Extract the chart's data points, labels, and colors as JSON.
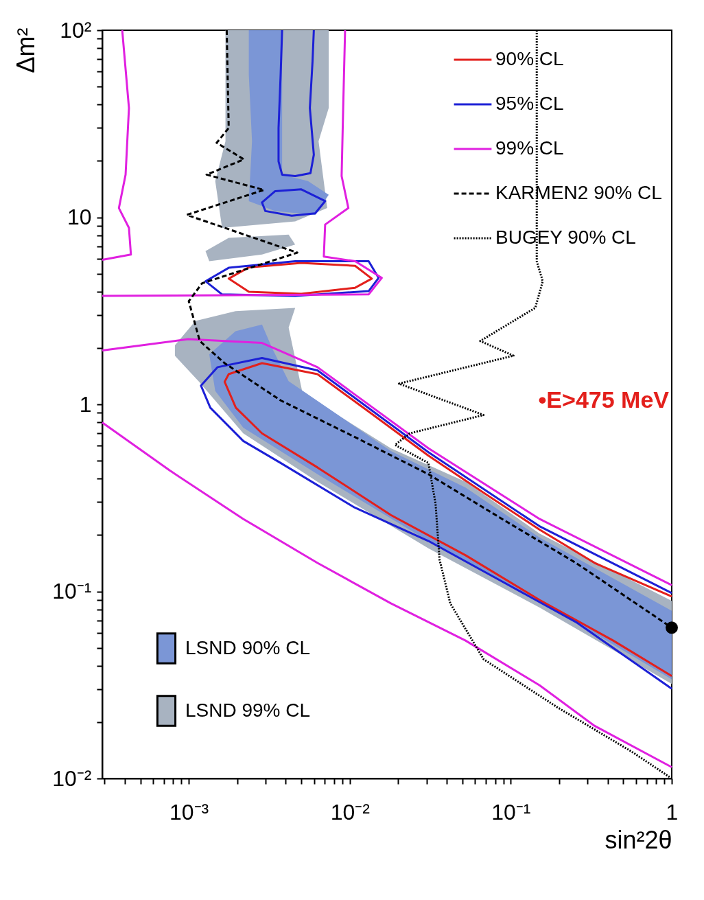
{
  "chart_data": {
    "type": "line",
    "xlabel": "sin²2θ",
    "ylabel": "Δm²",
    "log": "xy",
    "xlim": [
      0.00029,
      1
    ],
    "ylim": [
      0.01,
      100
    ],
    "xticks": [
      {
        "value": 0.0003,
        "label": null
      },
      {
        "value": 0.0004,
        "label": null
      },
      {
        "value": 0.0005,
        "label": null
      },
      {
        "value": 0.0006,
        "label": null
      },
      {
        "value": 0.0007,
        "label": null
      },
      {
        "value": 0.0008,
        "label": null
      },
      {
        "value": 0.0009,
        "label": null
      },
      {
        "value": 0.001,
        "label": "10⁻³"
      },
      {
        "value": 0.002,
        "label": null
      },
      {
        "value": 0.003,
        "label": null
      },
      {
        "value": 0.004,
        "label": null
      },
      {
        "value": 0.005,
        "label": null
      },
      {
        "value": 0.006,
        "label": null
      },
      {
        "value": 0.007,
        "label": null
      },
      {
        "value": 0.008,
        "label": null
      },
      {
        "value": 0.009,
        "label": null
      },
      {
        "value": 0.01,
        "label": "10⁻²"
      },
      {
        "value": 0.02,
        "label": null
      },
      {
        "value": 0.03,
        "label": null
      },
      {
        "value": 0.04,
        "label": null
      },
      {
        "value": 0.05,
        "label": null
      },
      {
        "value": 0.06,
        "label": null
      },
      {
        "value": 0.07,
        "label": null
      },
      {
        "value": 0.08,
        "label": null
      },
      {
        "value": 0.09,
        "label": null
      },
      {
        "value": 0.1,
        "label": "10⁻¹"
      },
      {
        "value": 0.2,
        "label": null
      },
      {
        "value": 0.3,
        "label": null
      },
      {
        "value": 0.4,
        "label": null
      },
      {
        "value": 0.5,
        "label": null
      },
      {
        "value": 0.6,
        "label": null
      },
      {
        "value": 0.7,
        "label": null
      },
      {
        "value": 0.8,
        "label": null
      },
      {
        "value": 0.9,
        "label": null
      },
      1
    ],
    "yticks": [
      {
        "value": 0.01,
        "label": "10⁻²"
      },
      {
        "value": 0.02,
        "label": null
      },
      {
        "value": 0.03,
        "label": null
      },
      {
        "value": 0.04,
        "label": null
      },
      {
        "value": 0.05,
        "label": null
      },
      {
        "value": 0.06,
        "label": null
      },
      {
        "value": 0.07,
        "label": null
      },
      {
        "value": 0.08,
        "label": null
      },
      {
        "value": 0.09,
        "label": null
      },
      {
        "value": 0.1,
        "label": "10⁻¹"
      },
      {
        "value": 0.2,
        "label": null
      },
      {
        "value": 0.3,
        "label": null
      },
      {
        "value": 0.4,
        "label": null
      },
      {
        "value": 0.5,
        "label": null
      },
      {
        "value": 0.6,
        "label": null
      },
      {
        "value": 0.7,
        "label": null
      },
      {
        "value": 0.8,
        "label": null
      },
      {
        "value": 0.9,
        "label": null
      },
      1,
      {
        "value": 2,
        "label": null
      },
      {
        "value": 3,
        "label": null
      },
      {
        "value": 4,
        "label": null
      },
      {
        "value": 5,
        "label": null
      },
      {
        "value": 6,
        "label": null
      },
      {
        "value": 7,
        "label": null
      },
      {
        "value": 8,
        "label": null
      },
      {
        "value": 9,
        "label": null
      },
      10,
      {
        "value": 20,
        "label": null
      },
      {
        "value": 30,
        "label": null
      },
      {
        "value": 40,
        "label": null
      },
      {
        "value": 50,
        "label": null
      },
      {
        "value": 60,
        "label": null
      },
      {
        "value": 70,
        "label": null
      },
      {
        "value": 80,
        "label": null
      },
      {
        "value": 90,
        "label": null
      },
      {
        "value": 100,
        "label": "10²"
      }
    ],
    "legend": "top right",
    "annotations": [
      "•E>475 MeV"
    ],
    "series": [
      {
        "type": "area",
        "name": "LSND 90% CL",
        "color": "#7b96d6",
        "x": [
          0.00134,
          0.00195,
          0.00285,
          0.00329,
          0.00417,
          0.018,
          0.0524,
          0.151,
          1,
          1,
          0.151,
          0.0308,
          0.0063,
          0.00218,
          0.00146,
          null,
          0.00236,
          0.0038,
          0.0038,
          0.0055,
          0.0074,
          0.0061,
          0.00344,
          0.00236,
          0.00247,
          0.00236
        ],
        "values": [
          1.85,
          2.46,
          2.67,
          2.0,
          1.33,
          0.563,
          0.359,
          0.194,
          0.0788,
          0.0339,
          0.089,
          0.186,
          0.423,
          0.75,
          1.18,
          null,
          100,
          100,
          16.9,
          15.6,
          13.2,
          10.3,
          10.8,
          12.2,
          25.5,
          57.8
        ]
      },
      {
        "type": "area",
        "name": "LSND 99% CL",
        "color": "#a8b3c1",
        "x": [
          0.00082,
          0.0011,
          0.00195,
          0.00458,
          0.00417,
          0.00509,
          0.018,
          0.0524,
          0.151,
          1,
          1,
          0.151,
          0.0308,
          0.0063,
          0.00218,
          0.00116,
          0.00082,
          null,
          0.00169,
          0.0074,
          0.0074,
          0.0064,
          0.00724,
          0.00458,
          0.00161,
          0.00146,
          0.00169,
          null,
          0.00127,
          0.00177,
          0.00417,
          0.00458,
          0.00285,
          0.00134
        ],
        "values": [
          2.07,
          2.79,
          3.15,
          3.28,
          2.57,
          1.15,
          0.582,
          0.386,
          0.204,
          0.089,
          0.032,
          0.082,
          0.17,
          0.386,
          0.7,
          1.32,
          1.82,
          null,
          100,
          100,
          38.4,
          25.5,
          11.2,
          9.5,
          8.77,
          15.6,
          25.5,
          null,
          6.59,
          7.76,
          8.08,
          7.15,
          6.32,
          5.82
        ]
      },
      {
        "type": "line",
        "name": "90% CL",
        "color": "#e3201c",
        "line_style": "solid",
        "x": [
          1,
          0.332,
          0.151,
          0.0678,
          0.0308,
          0.014,
          0.0063,
          0.00285,
          0.00177,
          0.00167,
          0.00196,
          0.00285,
          0.0063,
          0.018,
          0.0524,
          0.151,
          0.433,
          1,
          null,
          0.00177,
          0.00236,
          0.005,
          0.0108,
          0.0137,
          0.0108,
          0.005,
          0.00236,
          0.00177,
          0.00236
        ],
        "values": [
          0.094,
          0.142,
          0.214,
          0.337,
          0.532,
          0.877,
          1.45,
          1.66,
          1.45,
          1.32,
          0.96,
          0.7,
          0.46,
          0.256,
          0.156,
          0.09,
          0.0546,
          0.0353,
          null,
          4.7,
          5.4,
          5.7,
          5.5,
          4.7,
          4.2,
          3.9,
          4.0,
          4.7,
          5.4
        ]
      },
      {
        "type": "line",
        "name": "95% CL",
        "color": "#1c20d6",
        "line_style": "solid",
        "x": [
          1,
          0.151,
          0.0308,
          0.0063,
          0.00285,
          0.00151,
          0.00119,
          0.00136,
          0.00218,
          0.00372,
          0.0107,
          0.0308,
          0.0883,
          0.254,
          1,
          null,
          0.00127,
          0.00177,
          0.00458,
          0.0131,
          0.0151,
          0.0131,
          0.00458,
          0.00161,
          0.00127,
          0.00177,
          null,
          0.00285,
          0.00344,
          0.005,
          0.00703,
          0.0061,
          0.00436,
          0.00299,
          0.00285,
          0.00344,
          null,
          0.0038,
          0.00372,
          0.00361,
          0.00361,
          0.0038,
          0.00458,
          0.0057,
          0.00598,
          0.00565,
          0.00587,
          0.00598
        ],
        "values": [
          0.098,
          0.223,
          0.555,
          1.52,
          1.77,
          1.58,
          1.26,
          0.96,
          0.637,
          0.486,
          0.281,
          0.186,
          0.113,
          0.0686,
          0.0302,
          null,
          4.55,
          5.37,
          5.82,
          5.82,
          4.74,
          4.03,
          3.8,
          3.87,
          4.55,
          5.37,
          null,
          12.0,
          13.8,
          14.1,
          12.2,
          10.5,
          10.2,
          10.8,
          12.0,
          13.8,
          null,
          100,
          57.8,
          30.0,
          19.9,
          16.9,
          16.6,
          17.2,
          21.6,
          38.4,
          68.0,
          100
        ]
      },
      {
        "type": "line",
        "name": "99% CL",
        "color": "#e020e0",
        "line_style": "solid",
        "x": [
          0.000386,
          0.000425,
          0.000405,
          0.000368,
          0.000425,
          0.000437,
          0.00029,
          null,
          0.00935,
          0.0091,
          0.0089,
          0.0098,
          0.00703,
          0.0069,
          0.0108,
          0.0158,
          0.0131,
          0.00029,
          null,
          0.00029,
          0.00099,
          0.00285,
          0.0063,
          0.0308,
          0.151,
          1,
          null,
          0.00029,
          0.000759,
          0.00218,
          0.0063,
          0.018,
          0.0524,
          0.151,
          0.332,
          1
        ],
        "values": [
          100,
          38.4,
          16.9,
          11.2,
          8.77,
          6.32,
          5.92,
          null,
          100,
          38.4,
          16.6,
          11.2,
          9.14,
          6.17,
          5.82,
          4.74,
          3.87,
          3.8,
          null,
          1.94,
          2.23,
          2.13,
          1.58,
          0.582,
          0.244,
          0.108,
          null,
          0.8,
          0.444,
          0.244,
          0.142,
          0.0863,
          0.0546,
          0.0315,
          0.0191,
          0.0115
        ]
      },
      {
        "type": "line",
        "name": "KARMEN2 90% CL",
        "color": "#000000",
        "line_style": "dashed",
        "x": [
          0.00172,
          0.00177,
          0.00149,
          0.0022,
          0.00129,
          0.00293,
          0.00097,
          0.00472,
          0.00121,
          0.001,
          0.00117,
          0.00167,
          0.00372,
          0.0107,
          0.0308,
          0.0883,
          0.254,
          1
        ],
        "values": [
          100,
          30.0,
          25.0,
          20.4,
          16.9,
          14.0,
          10.3,
          6.47,
          4.44,
          3.56,
          2.18,
          1.66,
          1.05,
          0.67,
          0.423,
          0.244,
          0.142,
          0.064
        ]
      },
      {
        "type": "line",
        "name": "BUGEY 90% CL",
        "color": "#000000",
        "line_style": "dotted",
        "x": [
          0.145,
          0.145,
          0.158,
          0.142,
          0.0646,
          0.104,
          0.0202,
          0.0678,
          0.0236,
          0.0191,
          0.0308,
          0.0341,
          0.0361,
          0.0421,
          0.0678,
          0.195,
          0.565,
          1
        ],
        "values": [
          100,
          5.82,
          4.55,
          3.28,
          2.18,
          1.82,
          1.29,
          0.877,
          0.7,
          0.607,
          0.486,
          0.295,
          0.148,
          0.0863,
          0.0434,
          0.024,
          0.0139,
          0.01
        ]
      },
      {
        "type": "scatter",
        "color": "#000000",
        "x": [
          1
        ],
        "values": [
          0.064
        ]
      }
    ]
  }
}
